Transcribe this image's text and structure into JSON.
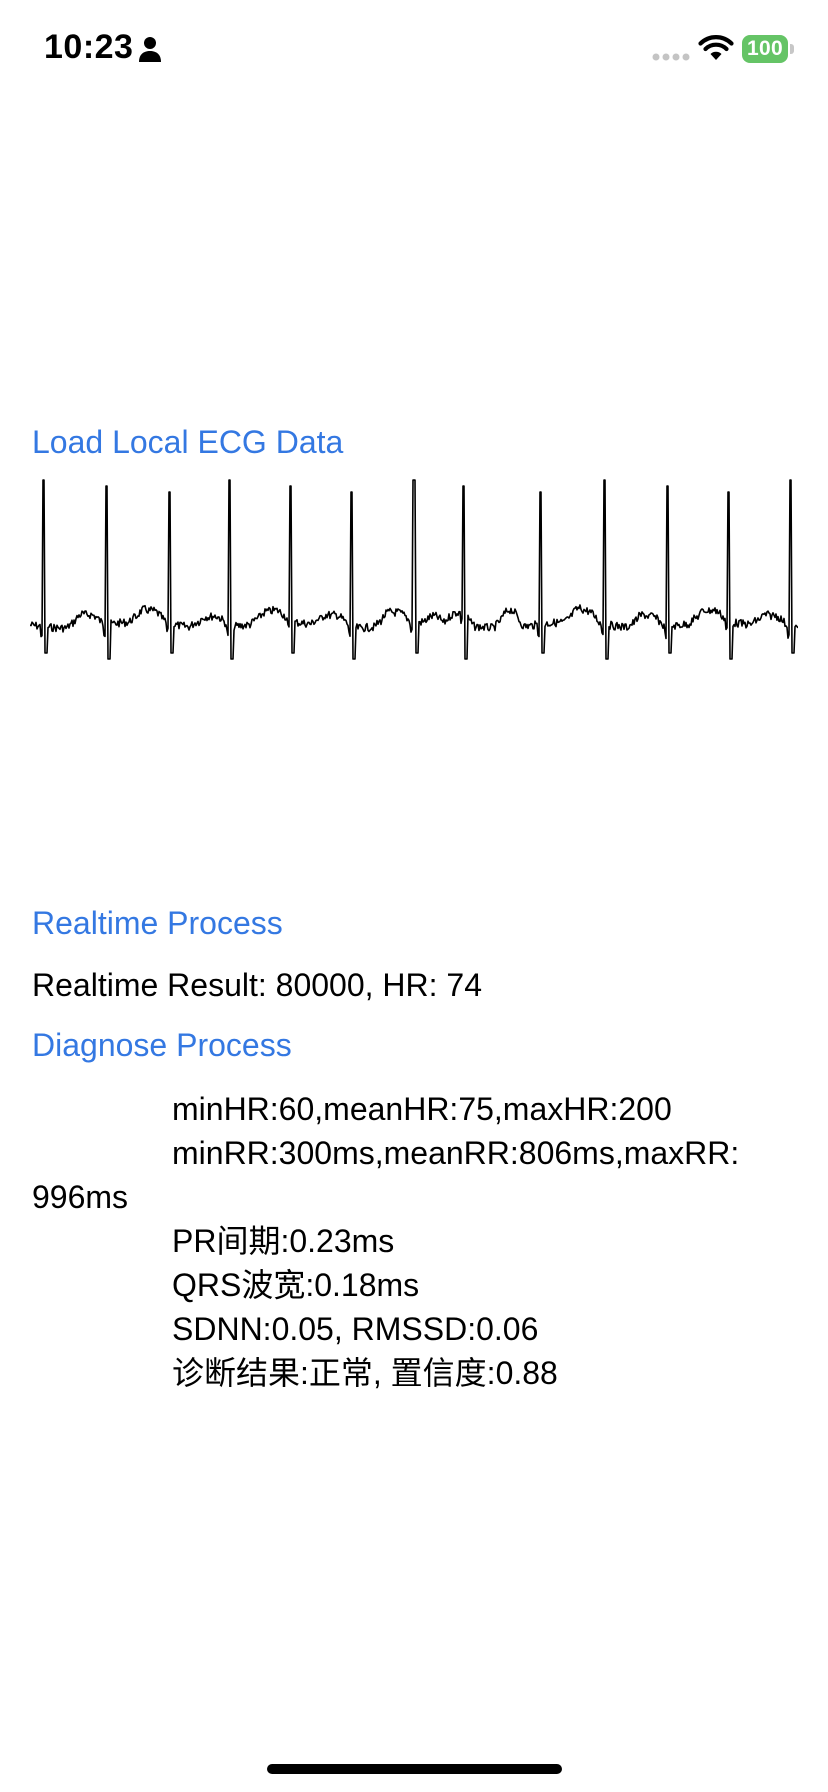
{
  "status_bar": {
    "time": "10:23",
    "battery": "100",
    "icons": [
      "person-icon",
      "cellular-signal-icon",
      "wifi-icon",
      "battery-icon"
    ]
  },
  "buttons": {
    "load_local_ecg": "Load Local ECG Data",
    "realtime_process": "Realtime Process",
    "diagnose_process": "Diagnose Process"
  },
  "realtime": {
    "label": "Realtime Result: ",
    "result": "80000",
    "hr_label": ", HR: ",
    "hr": "74"
  },
  "diagnosis": {
    "hr_line": "minHR:60,meanHR:75,maxHR:200",
    "rr_line_part1": "minRR:300ms,meanRR:806ms,maxRR:",
    "rr_line_part2": "996ms",
    "pr_line": "PR间期:0.23ms",
    "qrs_line": "QRS波宽:0.18ms",
    "hrv_line": "SDNN:0.05, RMSSD:0.06",
    "result_line": "诊断结果:正常, 置信度:0.88"
  },
  "chart_data": {
    "type": "line",
    "title": "",
    "xlabel": "",
    "ylabel": "",
    "grid": false,
    "line_color": "#000000",
    "r_peak_fractions": [
      0.018,
      0.1,
      0.181,
      0.26,
      0.339,
      0.418,
      0.5,
      0.565,
      0.665,
      0.748,
      0.83,
      0.91,
      0.99
    ],
    "series": [
      {
        "values": []
      }
    ]
  }
}
